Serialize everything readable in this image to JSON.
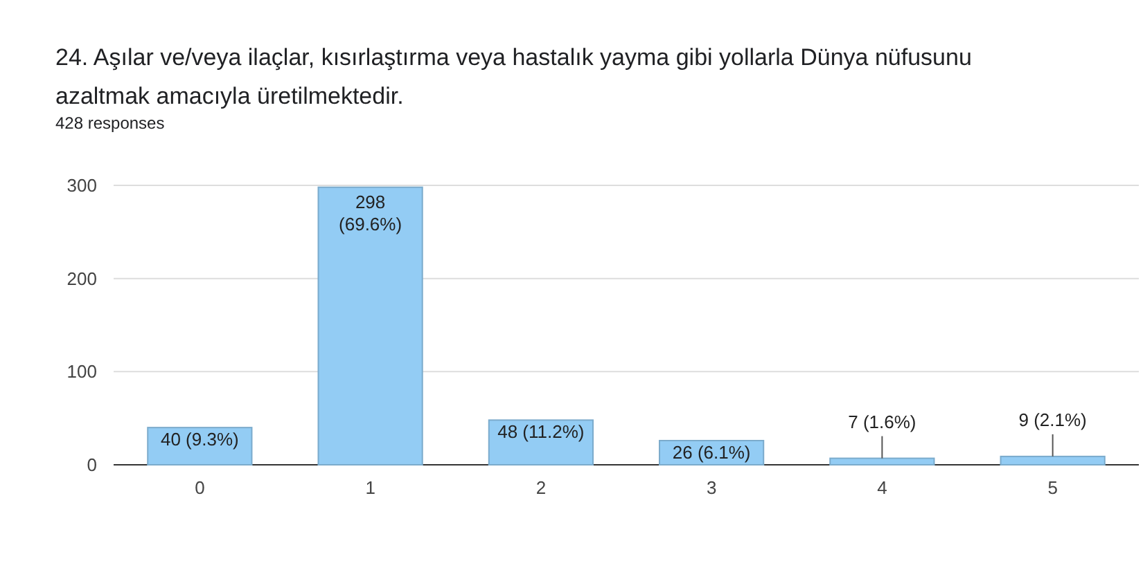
{
  "chart_data": {
    "type": "bar",
    "title": "24. Aşılar ve/veya ilaçlar, kısırlaştırma veya hastalık yayma gibi yollarla Dünya nüfusunu azaltmak amacıyla üretilmektedir.",
    "subtitle": "428 responses",
    "categories": [
      "0",
      "1",
      "2",
      "3",
      "4",
      "5"
    ],
    "values": [
      40,
      298,
      48,
      26,
      7,
      9
    ],
    "value_labels": [
      "40 (9.3%)",
      "298 (69.6%)",
      "48 (11.2%)",
      "26 (6.1%)",
      "7 (1.6%)",
      "9 (2.1%)"
    ],
    "color": "#93ccf4",
    "ylim": [
      0,
      300
    ],
    "yticks": [
      0,
      100,
      200,
      300
    ],
    "grid": "y"
  }
}
